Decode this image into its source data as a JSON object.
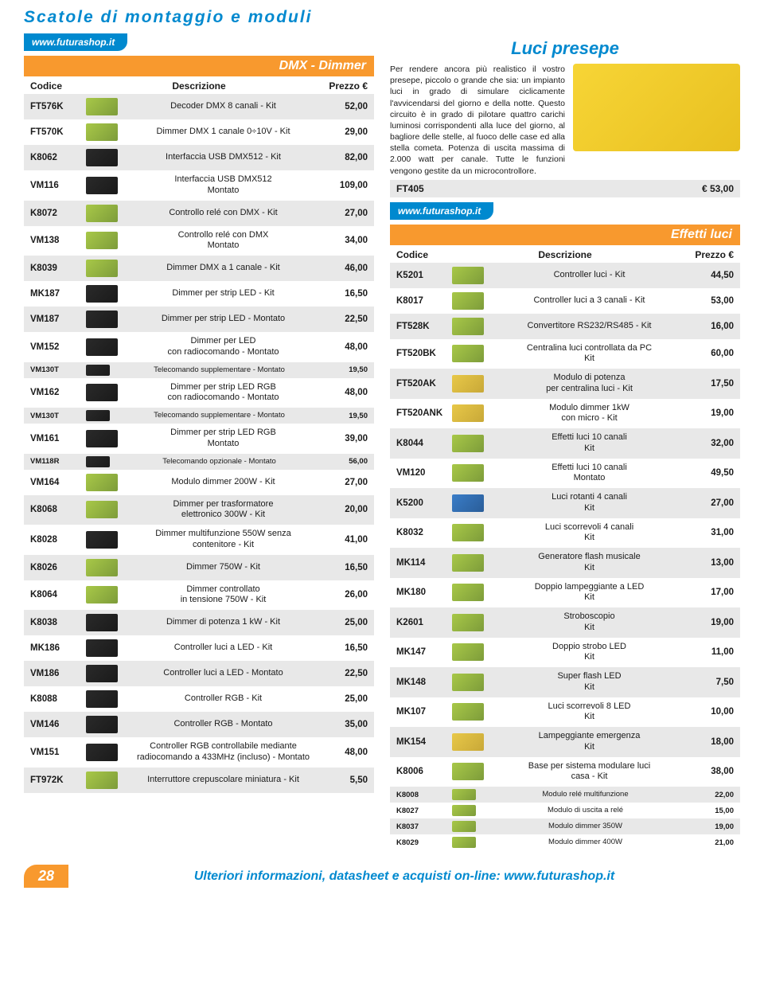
{
  "page": {
    "title": "Scatole di montaggio e moduli",
    "url": "www.futurashop.it",
    "pageNumber": "28",
    "footerText": "Ulteriori informazioni, datasheet e acquisti on-line:",
    "footerUrl": "www.futurashop.it"
  },
  "leftSection": {
    "title": "DMX - Dimmer",
    "headers": {
      "code": "Codice",
      "desc": "Descrizione",
      "price": "Prezzo €"
    },
    "rows": [
      {
        "code": "FT576K",
        "desc": "Decoder DMX 8 canali - Kit",
        "price": "52,00",
        "img": "green"
      },
      {
        "code": "FT570K",
        "desc": "Dimmer DMX 1 canale 0÷10V - Kit",
        "price": "29,00",
        "img": "green"
      },
      {
        "code": "K8062",
        "desc": "Interfaccia USB DMX512 - Kit",
        "price": "82,00",
        "img": "dark"
      },
      {
        "code": "VM116",
        "desc": "Interfaccia USB DMX512\nMontato",
        "price": "109,00",
        "img": "dark"
      },
      {
        "code": "K8072",
        "desc": "Controllo relé con DMX - Kit",
        "price": "27,00",
        "img": "green"
      },
      {
        "code": "VM138",
        "desc": "Controllo relé con DMX\nMontato",
        "price": "34,00",
        "img": "green"
      },
      {
        "code": "K8039",
        "desc": "Dimmer DMX a 1 canale - Kit",
        "price": "46,00",
        "img": "green"
      },
      {
        "code": "MK187",
        "desc": "Dimmer per strip LED - Kit",
        "price": "16,50",
        "img": "dark"
      },
      {
        "code": "VM187",
        "desc": "Dimmer per strip LED - Montato",
        "price": "22,50",
        "img": "dark"
      },
      {
        "code": "VM152",
        "desc": "Dimmer per LED\ncon radiocomando - Montato",
        "price": "48,00",
        "img": "dark"
      },
      {
        "code": "VM130T",
        "desc": "Telecomando supplementare - Montato",
        "price": "19,50",
        "small": true,
        "img": "dark"
      },
      {
        "code": "VM162",
        "desc": "Dimmer per strip LED RGB\ncon radiocomando - Montato",
        "price": "48,00",
        "img": "dark"
      },
      {
        "code": "VM130T",
        "desc": "Telecomando supplementare - Montato",
        "price": "19,50",
        "small": true,
        "img": "dark"
      },
      {
        "code": "VM161",
        "desc": "Dimmer per strip LED RGB\nMontato",
        "price": "39,00",
        "img": "dark"
      },
      {
        "code": "VM118R",
        "desc": "Telecomando opzionale - Montato",
        "price": "56,00",
        "small": true,
        "img": "dark"
      },
      {
        "code": "VM164",
        "desc": "Modulo dimmer 200W - Kit",
        "price": "27,00",
        "img": "green"
      },
      {
        "code": "K8068",
        "desc": "Dimmer per trasformatore\nelettronico 300W - Kit",
        "price": "20,00",
        "img": "green"
      },
      {
        "code": "K8028",
        "desc": "Dimmer multifunzione 550W senza\ncontenitore - Kit",
        "price": "41,00",
        "img": "dark"
      },
      {
        "code": "K8026",
        "desc": "Dimmer 750W - Kit",
        "price": "16,50",
        "img": "green"
      },
      {
        "code": "K8064",
        "desc": "Dimmer controllato\nin tensione 750W - Kit",
        "price": "26,00",
        "img": "green"
      },
      {
        "code": "K8038",
        "desc": "Dimmer di potenza 1 kW - Kit",
        "price": "25,00",
        "img": "dark"
      },
      {
        "code": "MK186",
        "desc": "Controller luci a LED - Kit",
        "price": "16,50",
        "img": "dark"
      },
      {
        "code": "VM186",
        "desc": "Controller luci a LED - Montato",
        "price": "22,50",
        "img": "dark"
      },
      {
        "code": "K8088",
        "desc": "Controller RGB - Kit",
        "price": "25,00",
        "img": "dark"
      },
      {
        "code": "VM146",
        "desc": "Controller RGB - Montato",
        "price": "35,00",
        "img": "dark"
      },
      {
        "code": "VM151",
        "desc": "Controller RGB controllabile mediante\nradiocomando a 433MHz (incluso) - Montato",
        "price": "48,00",
        "img": "dark"
      },
      {
        "code": "FT972K",
        "desc": "Interruttore crepuscolare miniatura - Kit",
        "price": "5,50",
        "img": "green"
      }
    ]
  },
  "article": {
    "title": "Luci presepe",
    "text": "Per rendere ancora più realistico il vostro presepe, piccolo o grande che sia: un impianto luci in grado di simulare ciclicamente l'avvicendarsi del giorno e della notte. Questo circuito è in grado di pilotare quattro carichi luminosi corrispondenti alla luce del giorno, al bagliore delle stelle, al fuoco delle case ed alla stella cometa. Potenza di uscita massima di 2.000 watt per canale. Tutte le funzioni vengono gestite da un microcontrollore.",
    "footerCode": "FT405",
    "footerPrice": "€ 53,00"
  },
  "rightSection": {
    "title": "Effetti luci",
    "headers": {
      "code": "Codice",
      "desc": "Descrizione",
      "price": "Prezzo €"
    },
    "rows": [
      {
        "code": "K5201",
        "desc": "Controller luci - Kit",
        "price": "44,50",
        "img": "green"
      },
      {
        "code": "K8017",
        "desc": "Controller luci a 3 canali - Kit",
        "price": "53,00",
        "img": "green"
      },
      {
        "code": "FT528K",
        "desc": "Convertitore RS232/RS485 - Kit",
        "price": "16,00",
        "img": "green"
      },
      {
        "code": "FT520BK",
        "desc": "Centralina luci controllata da PC\nKit",
        "price": "60,00",
        "img": "green"
      },
      {
        "code": "FT520AK",
        "desc": "Modulo di potenza\nper centralina luci - Kit",
        "price": "17,50",
        "img": "yellow"
      },
      {
        "code": "FT520ANK",
        "desc": "Modulo dimmer 1kW\ncon micro - Kit",
        "price": "19,00",
        "img": "yellow"
      },
      {
        "code": "K8044",
        "desc": "Effetti luci 10 canali\nKit",
        "price": "32,00",
        "img": "green"
      },
      {
        "code": "VM120",
        "desc": "Effetti luci 10 canali\nMontato",
        "price": "49,50",
        "img": "green"
      },
      {
        "code": "K5200",
        "desc": "Luci rotanti 4 canali\nKit",
        "price": "27,00",
        "img": "blue"
      },
      {
        "code": "K8032",
        "desc": "Luci scorrevoli 4 canali\nKit",
        "price": "31,00",
        "img": "green"
      },
      {
        "code": "MK114",
        "desc": "Generatore flash musicale\nKit",
        "price": "13,00",
        "img": "green"
      },
      {
        "code": "MK180",
        "desc": "Doppio lampeggiante a LED\nKit",
        "price": "17,00",
        "img": "green"
      },
      {
        "code": "K2601",
        "desc": "Stroboscopio\nKit",
        "price": "19,00",
        "img": "green"
      },
      {
        "code": "MK147",
        "desc": "Doppio strobo LED\nKit",
        "price": "11,00",
        "img": "green"
      },
      {
        "code": "MK148",
        "desc": "Super flash LED\nKit",
        "price": "7,50",
        "img": "green"
      },
      {
        "code": "MK107",
        "desc": "Luci scorrevoli 8 LED\nKit",
        "price": "10,00",
        "img": "green"
      },
      {
        "code": "MK154",
        "desc": "Lampeggiante emergenza\nKit",
        "price": "18,00",
        "img": "yellow"
      },
      {
        "code": "K8006",
        "desc": "Base per sistema modulare luci\ncasa - Kit",
        "price": "38,00",
        "img": "green"
      },
      {
        "code": "K8008",
        "desc": "Modulo relé multifunzione",
        "price": "22,00",
        "small": true,
        "img": "green"
      },
      {
        "code": "K8027",
        "desc": "Modulo di uscita a relé",
        "price": "15,00",
        "small": true,
        "img": "green"
      },
      {
        "code": "K8037",
        "desc": "Modulo dimmer 350W",
        "price": "19,00",
        "small": true,
        "img": "green"
      },
      {
        "code": "K8029",
        "desc": "Modulo dimmer 400W",
        "price": "21,00",
        "small": true,
        "img": "green"
      }
    ]
  }
}
